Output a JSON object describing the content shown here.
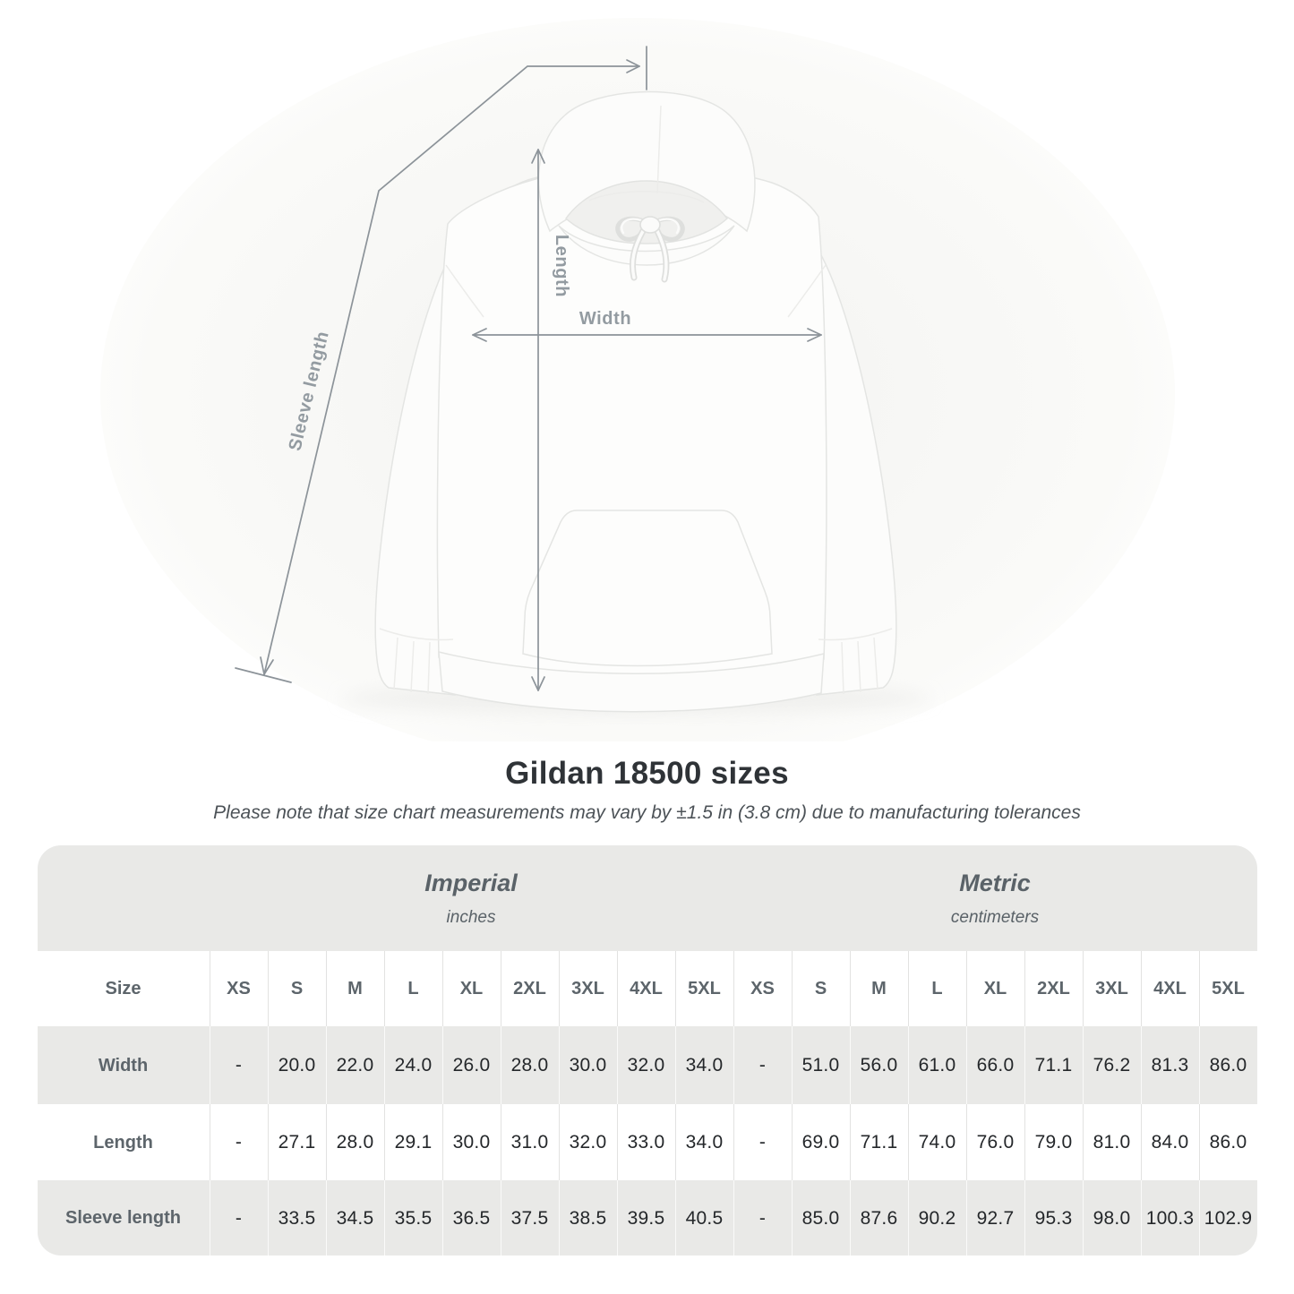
{
  "diagram": {
    "labels": {
      "sleeve_length": "Sleeve length",
      "length": "Length",
      "width": "Width"
    }
  },
  "title": "Gildan 18500 sizes",
  "note": "Please note that size chart measurements may vary by ±1.5 in (3.8 cm) due to manufacturing tolerances",
  "table": {
    "size_col_header": "Size",
    "unit_groups": [
      {
        "label": "Imperial",
        "sublabel": "inches"
      },
      {
        "label": "Metric",
        "sublabel": "centimeters"
      }
    ],
    "sizes": [
      "XS",
      "S",
      "M",
      "L",
      "XL",
      "2XL",
      "3XL",
      "4XL",
      "5XL"
    ],
    "rows": [
      {
        "label": "Width",
        "imperial": [
          "-",
          "20.0",
          "22.0",
          "24.0",
          "26.0",
          "28.0",
          "30.0",
          "32.0",
          "34.0"
        ],
        "metric": [
          "-",
          "51.0",
          "56.0",
          "61.0",
          "66.0",
          "71.1",
          "76.2",
          "81.3",
          "86.0"
        ]
      },
      {
        "label": "Length",
        "imperial": [
          "-",
          "27.1",
          "28.0",
          "29.1",
          "30.0",
          "31.0",
          "32.0",
          "33.0",
          "34.0"
        ],
        "metric": [
          "-",
          "69.0",
          "71.1",
          "74.0",
          "76.0",
          "79.0",
          "81.0",
          "84.0",
          "86.0"
        ]
      },
      {
        "label": "Sleeve length",
        "imperial": [
          "-",
          "33.5",
          "34.5",
          "35.5",
          "36.5",
          "37.5",
          "38.5",
          "39.5",
          "40.5"
        ],
        "metric": [
          "-",
          "85.0",
          "87.6",
          "90.2",
          "92.7",
          "95.3",
          "98.0",
          "100.3",
          "102.9"
        ]
      }
    ]
  },
  "colors": {
    "table_stripe": "#e9e9e7",
    "divider_on_white": "#e2e2e1",
    "divider_on_gray": "#fafaf9",
    "heading_text": "#5d656b",
    "value_text": "#24272a",
    "measure_line": "#8c9399",
    "measure_label": "#939ba1",
    "title_text": "#2f3337",
    "note_text": "#4c5257"
  }
}
